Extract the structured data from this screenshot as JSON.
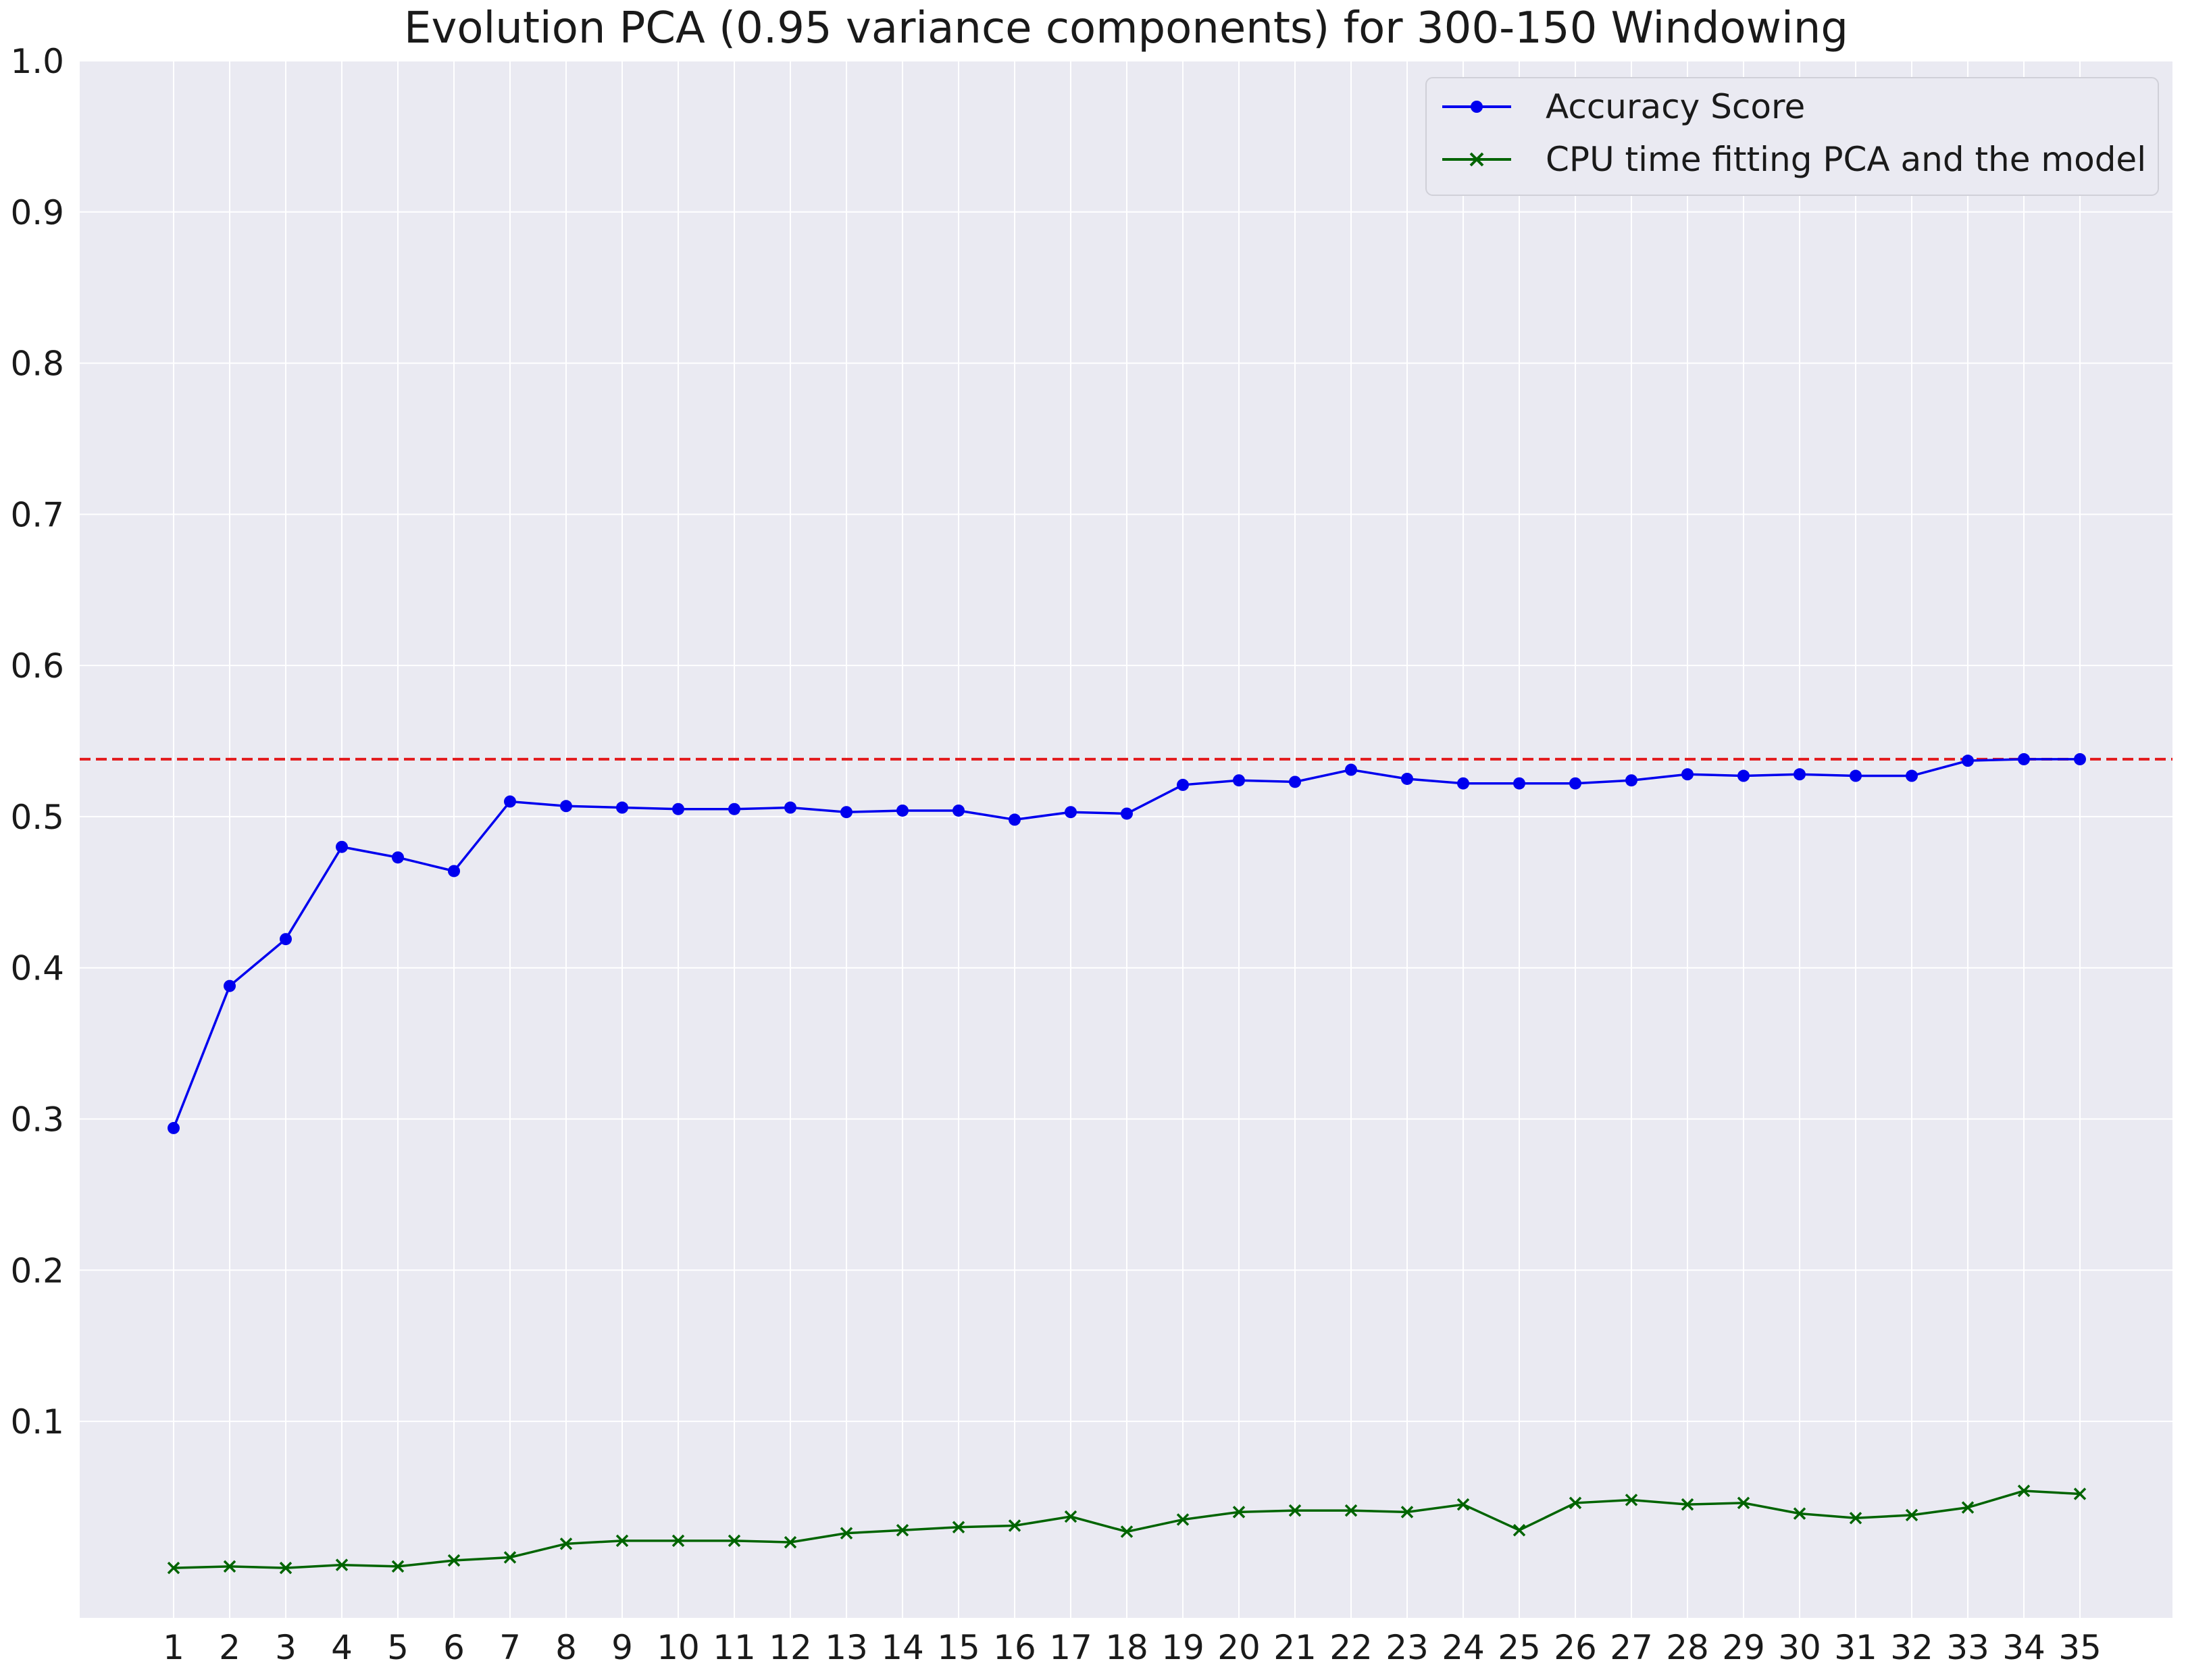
{
  "chart_data": {
    "type": "line",
    "title": "Evolution PCA (0.95 variance components) for 300-150 Windowing",
    "xlabel": "",
    "ylabel": "",
    "categories": [
      "1",
      "2",
      "3",
      "4",
      "5",
      "6",
      "7",
      "8",
      "9",
      "10",
      "11",
      "12",
      "13",
      "14",
      "15",
      "16",
      "17",
      "18",
      "19",
      "20",
      "21",
      "22",
      "23",
      "24",
      "25",
      "26",
      "27",
      "28",
      "29",
      "30",
      "31",
      "32",
      "33",
      "34",
      "35"
    ],
    "y_ticks": [
      "0.1",
      "0.2",
      "0.3",
      "0.4",
      "0.5",
      "0.6",
      "0.7",
      "0.8",
      "0.9",
      "1.0"
    ],
    "ylim": [
      -0.03,
      1.0
    ],
    "grid": true,
    "legend_position": "top-right",
    "reference_line": {
      "y": 0.538,
      "color": "#e31a1c",
      "style": "dashed"
    },
    "series": [
      {
        "name": "Accuracy Score",
        "color": "#0000ee",
        "marker": "circle",
        "values": [
          0.294,
          0.388,
          0.419,
          0.48,
          0.473,
          0.464,
          0.51,
          0.507,
          0.506,
          0.505,
          0.505,
          0.506,
          0.503,
          0.504,
          0.504,
          0.498,
          0.503,
          0.502,
          0.521,
          0.524,
          0.523,
          0.531,
          0.525,
          0.522,
          0.522,
          0.522,
          0.524,
          0.528,
          0.527,
          0.528,
          0.527,
          0.527,
          0.537,
          0.538,
          0.538
        ]
      },
      {
        "name": "CPU time fitting PCA and the model",
        "color": "#006400",
        "marker": "x",
        "values": [
          0.003,
          0.004,
          0.003,
          0.005,
          0.004,
          0.008,
          0.01,
          0.019,
          0.021,
          0.021,
          0.021,
          0.02,
          0.026,
          0.028,
          0.03,
          0.031,
          0.037,
          0.027,
          0.035,
          0.04,
          0.041,
          0.041,
          0.04,
          0.045,
          0.028,
          0.046,
          0.048,
          0.045,
          0.046,
          0.039,
          0.036,
          0.038,
          0.043,
          0.054,
          0.052
        ]
      }
    ]
  }
}
